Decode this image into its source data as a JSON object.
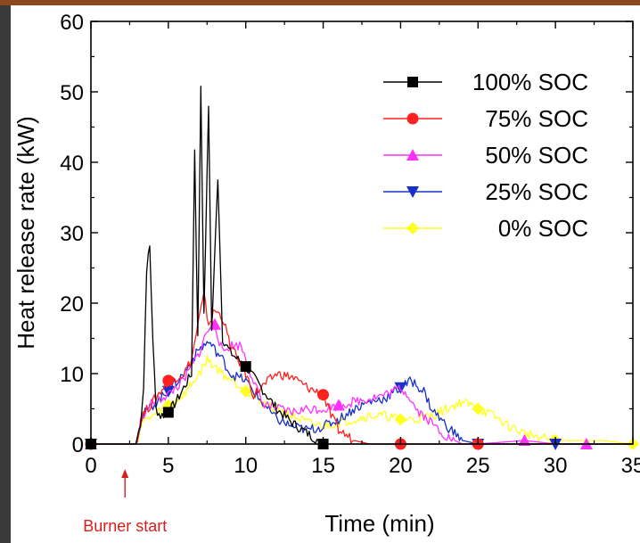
{
  "chart_data": {
    "type": "line",
    "xlabel": "Time (min)",
    "ylabel": "Heat release rate (kW)",
    "xlim": [
      0,
      35
    ],
    "ylim": [
      0,
      60
    ],
    "x_ticks": [
      "0",
      "5",
      "10",
      "15",
      "20",
      "25",
      "30",
      "35"
    ],
    "y_ticks": [
      "0",
      "10",
      "20",
      "30",
      "40",
      "50",
      "60"
    ],
    "grid": false,
    "legend_position": "top-right",
    "annotation": {
      "text": "Burner start",
      "x": 2.2
    },
    "series": [
      {
        "name": "100% SOC",
        "color": "#000000",
        "marker": "square",
        "points": [
          [
            0,
            0
          ],
          [
            2.9,
            0
          ],
          [
            3.2,
            3
          ],
          [
            3.4,
            8
          ],
          [
            3.6,
            25
          ],
          [
            3.8,
            28
          ],
          [
            4.0,
            15
          ],
          [
            4.2,
            5
          ],
          [
            4.5,
            4
          ],
          [
            5,
            4.5
          ],
          [
            5.5,
            6
          ],
          [
            6,
            8
          ],
          [
            6.5,
            10
          ],
          [
            6.7,
            42
          ],
          [
            6.9,
            15
          ],
          [
            7.1,
            51
          ],
          [
            7.3,
            18
          ],
          [
            7.6,
            48
          ],
          [
            7.8,
            16
          ],
          [
            8.2,
            38
          ],
          [
            8.5,
            15
          ],
          [
            9,
            13
          ],
          [
            10,
            11
          ],
          [
            11,
            8
          ],
          [
            12,
            5
          ],
          [
            13,
            3
          ],
          [
            14,
            1.5
          ],
          [
            15,
            0
          ],
          [
            16,
            0
          ],
          [
            20,
            0
          ],
          [
            25,
            0
          ],
          [
            30,
            0
          ],
          [
            35,
            0
          ]
        ],
        "markers": [
          [
            0,
            0
          ],
          [
            5,
            4.5
          ],
          [
            10,
            11
          ],
          [
            15,
            0
          ]
        ]
      },
      {
        "name": "75% SOC",
        "color": "#ff2020",
        "marker": "circle",
        "points": [
          [
            0,
            0
          ],
          [
            2.9,
            0
          ],
          [
            3.3,
            4
          ],
          [
            4,
            6
          ],
          [
            5,
            9
          ],
          [
            6,
            10
          ],
          [
            6.5,
            12
          ],
          [
            7,
            18
          ],
          [
            7.3,
            21
          ],
          [
            7.6,
            17
          ],
          [
            8,
            19
          ],
          [
            8.5,
            18
          ],
          [
            9,
            14
          ],
          [
            10,
            10
          ],
          [
            10.5,
            7
          ],
          [
            11,
            8
          ],
          [
            12,
            10
          ],
          [
            13,
            9.5
          ],
          [
            14,
            8
          ],
          [
            15,
            7
          ],
          [
            15.5,
            4
          ],
          [
            16,
            2
          ],
          [
            17,
            0.5
          ],
          [
            18,
            0
          ],
          [
            20,
            0
          ],
          [
            25,
            0
          ],
          [
            30,
            0
          ],
          [
            35,
            0
          ]
        ],
        "markers": [
          [
            0,
            0
          ],
          [
            5,
            9
          ],
          [
            15,
            7
          ],
          [
            20,
            0
          ],
          [
            25,
            0
          ]
        ]
      },
      {
        "name": "50% SOC",
        "color": "#ff30ff",
        "marker": "triangle-up",
        "points": [
          [
            0,
            0
          ],
          [
            2.9,
            0
          ],
          [
            3.3,
            4
          ],
          [
            4,
            6
          ],
          [
            5,
            7
          ],
          [
            6,
            9
          ],
          [
            7,
            13
          ],
          [
            7.5,
            16
          ],
          [
            8,
            17
          ],
          [
            8.5,
            13
          ],
          [
            9,
            14
          ],
          [
            9.7,
            14
          ],
          [
            10.5,
            9
          ],
          [
            11,
            6
          ],
          [
            12,
            5
          ],
          [
            13,
            4.5
          ],
          [
            14,
            5
          ],
          [
            15,
            5
          ],
          [
            16,
            5.5
          ],
          [
            17,
            6
          ],
          [
            18,
            6.5
          ],
          [
            19,
            7
          ],
          [
            20,
            8
          ],
          [
            20.5,
            7
          ],
          [
            21,
            5
          ],
          [
            22,
            3
          ],
          [
            23,
            1
          ],
          [
            24,
            0
          ],
          [
            25,
            0
          ],
          [
            28,
            0.5
          ],
          [
            30,
            0
          ],
          [
            32,
            0
          ],
          [
            35,
            0
          ]
        ],
        "markers": [
          [
            0,
            0
          ],
          [
            8,
            17
          ],
          [
            16,
            5.5
          ],
          [
            28,
            0.5
          ],
          [
            32,
            0
          ]
        ]
      },
      {
        "name": "25% SOC",
        "color": "#1830c8",
        "marker": "triangle-down",
        "points": [
          [
            0,
            0
          ],
          [
            2.9,
            0
          ],
          [
            3.3,
            4
          ],
          [
            4,
            5.5
          ],
          [
            5,
            7.5
          ],
          [
            6,
            10
          ],
          [
            7,
            13.5
          ],
          [
            7.6,
            14.5
          ],
          [
            8.5,
            12
          ],
          [
            9,
            10
          ],
          [
            10,
            9
          ],
          [
            11,
            6
          ],
          [
            12,
            3.5
          ],
          [
            13,
            2.5
          ],
          [
            14,
            2
          ],
          [
            15,
            2.5
          ],
          [
            16,
            3.5
          ],
          [
            17,
            5
          ],
          [
            18,
            6
          ],
          [
            19,
            6.5
          ],
          [
            20,
            8
          ],
          [
            20.7,
            9
          ],
          [
            21.5,
            7.5
          ],
          [
            22,
            5
          ],
          [
            23,
            2.5
          ],
          [
            24,
            0.5
          ],
          [
            25,
            0
          ],
          [
            30,
            0
          ],
          [
            35,
            0
          ]
        ],
        "markers": [
          [
            0,
            0
          ],
          [
            5,
            7.5
          ],
          [
            20,
            8
          ],
          [
            25,
            0
          ],
          [
            30,
            0
          ]
        ]
      },
      {
        "name": "0% SOC",
        "color": "#ffff20",
        "marker": "diamond",
        "points": [
          [
            0,
            0
          ],
          [
            2.9,
            0
          ],
          [
            3.3,
            3
          ],
          [
            4,
            4
          ],
          [
            5,
            5.5
          ],
          [
            6,
            7
          ],
          [
            7,
            10
          ],
          [
            7.5,
            12
          ],
          [
            8.5,
            10
          ],
          [
            9.5,
            8.5
          ],
          [
            10,
            7.5
          ],
          [
            11,
            6
          ],
          [
            12,
            5
          ],
          [
            13,
            4
          ],
          [
            14,
            3
          ],
          [
            15,
            2.5
          ],
          [
            16,
            3
          ],
          [
            17,
            3.5
          ],
          [
            18,
            4
          ],
          [
            19,
            4
          ],
          [
            20,
            3.5
          ],
          [
            21,
            3.5
          ],
          [
            22,
            4
          ],
          [
            23,
            5
          ],
          [
            24,
            6
          ],
          [
            25,
            5
          ],
          [
            26,
            4
          ],
          [
            27,
            2.5
          ],
          [
            28,
            1.5
          ],
          [
            29,
            1
          ],
          [
            30,
            0.5
          ],
          [
            31,
            0.5
          ],
          [
            33,
            0.5
          ],
          [
            35,
            0
          ]
        ],
        "markers": [
          [
            0,
            0
          ],
          [
            5,
            5.5
          ],
          [
            10,
            7.5
          ],
          [
            20,
            3.5
          ],
          [
            25,
            5
          ],
          [
            30,
            0.5
          ],
          [
            35,
            0
          ]
        ]
      }
    ]
  }
}
